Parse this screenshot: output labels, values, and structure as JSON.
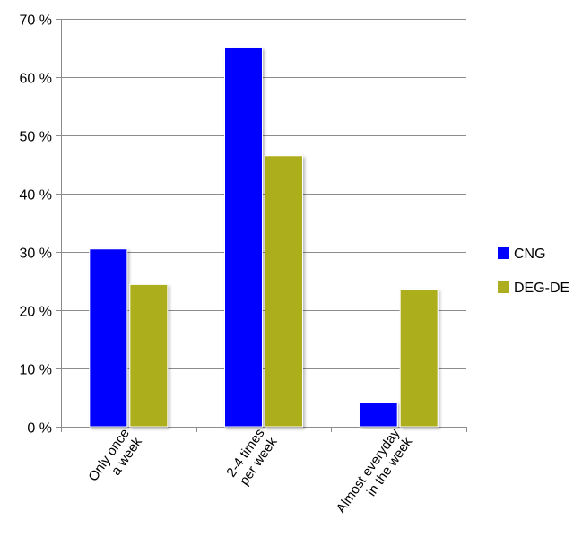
{
  "chart_data": {
    "type": "bar",
    "title": "",
    "xlabel": "",
    "ylabel": "",
    "categories": [
      [
        "Only once",
        "a week"
      ],
      [
        "2-4 times",
        "per week"
      ],
      [
        "Almost everyday",
        "in the week"
      ]
    ],
    "series": [
      {
        "name": "CNG",
        "color": "#0000ff",
        "values": [
          30.5,
          65.0,
          4.2
        ]
      },
      {
        "name": "DEG-DE",
        "color": "#adae1f",
        "values": [
          24.4,
          46.5,
          23.6
        ]
      }
    ],
    "ylim": [
      0,
      70
    ],
    "yticks": [
      0,
      10,
      20,
      30,
      40,
      50,
      60,
      70
    ],
    "ytick_labels": [
      "0 %",
      "10 %",
      "20 %",
      "30 %",
      "40 %",
      "50 %",
      "60 %",
      "70 %"
    ],
    "grid": true,
    "legend_position": "right"
  }
}
